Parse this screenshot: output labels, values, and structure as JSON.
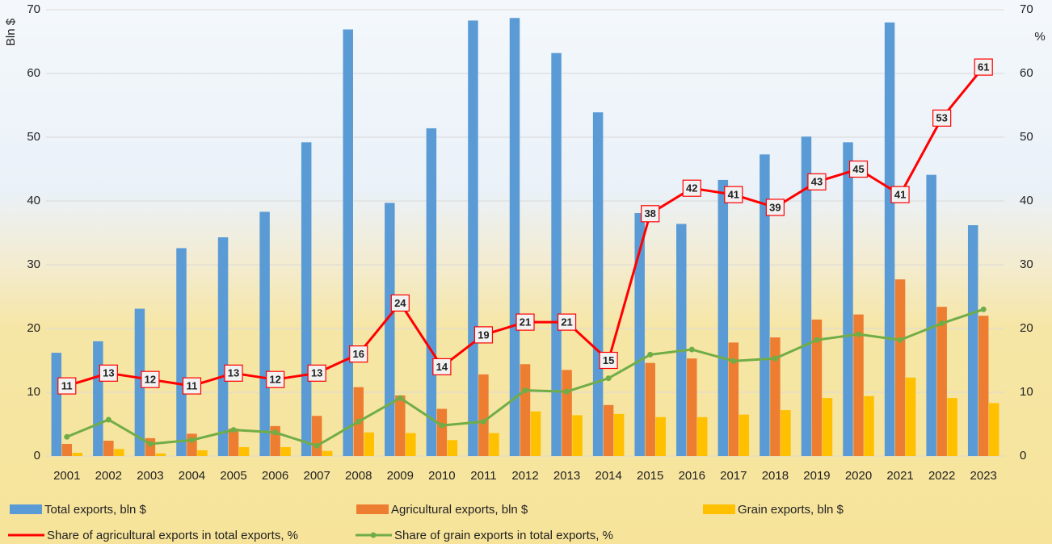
{
  "chart_data": {
    "type": "bar",
    "y_label": "Bln $",
    "y2_label": "%",
    "categories": [
      "2001",
      "2002",
      "2003",
      "2004",
      "2005",
      "2006",
      "2007",
      "2008",
      "2009",
      "2010",
      "2011",
      "2012",
      "2013",
      "2014",
      "2015",
      "2016",
      "2017",
      "2018",
      "2019",
      "2020",
      "2021",
      "2022",
      "2023"
    ],
    "series": [
      {
        "name": "Total exports, bln $",
        "type": "bar",
        "color": "#5b9bd5",
        "values": [
          16.2,
          18.0,
          23.1,
          32.6,
          34.3,
          38.3,
          49.2,
          66.9,
          39.7,
          51.4,
          68.3,
          68.7,
          63.2,
          53.9,
          38.1,
          36.4,
          43.3,
          47.3,
          50.1,
          49.2,
          68.0,
          44.1,
          36.2
        ]
      },
      {
        "name": "Agricultural exports, bln $",
        "type": "bar",
        "color": "#ed7d31",
        "values": [
          1.9,
          2.4,
          2.8,
          3.5,
          4.3,
          4.7,
          6.3,
          10.8,
          9.5,
          7.4,
          12.8,
          14.4,
          13.5,
          8.0,
          14.6,
          15.3,
          17.8,
          18.6,
          21.4,
          22.2,
          27.7,
          23.4,
          22.0
        ]
      },
      {
        "name": "Grain exports, bln $",
        "type": "bar",
        "color": "#ffc000",
        "values": [
          0.5,
          1.1,
          0.4,
          0.9,
          1.4,
          1.4,
          0.8,
          3.7,
          3.6,
          2.5,
          3.6,
          7.0,
          6.4,
          6.6,
          6.1,
          6.1,
          6.5,
          7.2,
          9.1,
          9.4,
          12.3,
          9.1,
          8.3
        ]
      },
      {
        "name": "Share of agricultural exports in total exports, %",
        "type": "line",
        "axis": "y2",
        "color": "#ff0000",
        "data_labels": true,
        "values": [
          11,
          13,
          12,
          11,
          13,
          12,
          13,
          16,
          24,
          14,
          19,
          21,
          21,
          15,
          38,
          42,
          41,
          39,
          43,
          45,
          41,
          53,
          61
        ]
      },
      {
        "name": "Share of grain exports in total exports, %",
        "type": "line",
        "axis": "y2",
        "color": "#70ad47",
        "markers": true,
        "values": [
          3.0,
          5.7,
          1.9,
          2.5,
          4.1,
          3.7,
          1.6,
          5.4,
          9.1,
          4.8,
          5.4,
          10.3,
          10.1,
          12.2,
          15.9,
          16.7,
          14.9,
          15.3,
          18.2,
          19.1,
          18.2,
          20.8,
          23.0
        ]
      }
    ],
    "ylim": [
      0,
      70
    ],
    "yticks": [
      0,
      10,
      20,
      30,
      40,
      50,
      60,
      70
    ],
    "y2lim": [
      0,
      70
    ],
    "y2ticks": [
      0,
      10,
      20,
      30,
      40,
      50,
      60,
      70
    ],
    "grid": true,
    "legend": "bottom"
  }
}
